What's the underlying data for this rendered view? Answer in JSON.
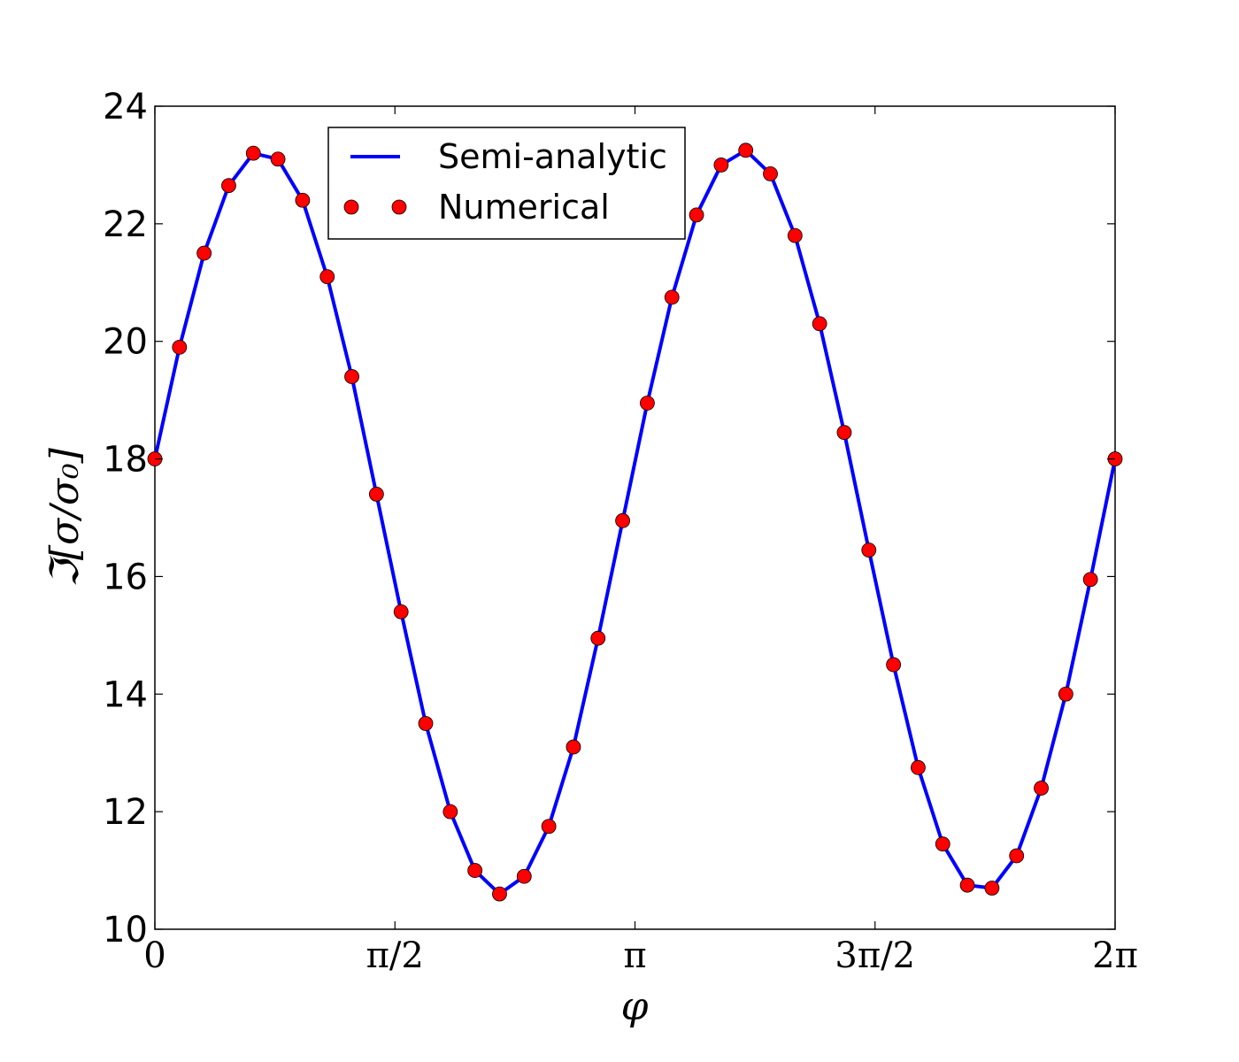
{
  "chart_data": {
    "type": "line",
    "title": "",
    "xlabel": "φ",
    "ylabel": "ℑ[σ/σ₀]",
    "xlim": [
      0,
      6.283185
    ],
    "ylim": [
      10,
      24
    ],
    "x_ticks": [
      {
        "value": 0,
        "label": "0"
      },
      {
        "value": 1.570796,
        "label": "π/2"
      },
      {
        "value": 3.141593,
        "label": "π"
      },
      {
        "value": 4.712389,
        "label": "3π/2"
      },
      {
        "value": 6.283185,
        "label": "2π"
      }
    ],
    "y_ticks": [
      10,
      12,
      14,
      16,
      18,
      20,
      22,
      24
    ],
    "legend_position": "top-left",
    "grid": false,
    "series": [
      {
        "name": "Semi-analytic",
        "style": "line",
        "color": "#0000ff",
        "x": [
          0,
          0.1611,
          0.3222,
          0.4833,
          0.6444,
          0.8055,
          0.9666,
          1.1277,
          1.2888,
          1.4499,
          1.611,
          1.7721,
          1.9332,
          2.0943,
          2.2554,
          2.4166,
          2.5777,
          2.7388,
          2.8999,
          3.061,
          3.2221,
          3.3832,
          3.5443,
          3.7054,
          3.8665,
          4.0276,
          4.1887,
          4.3498,
          4.5109,
          4.672,
          4.8332,
          4.9943,
          5.1554,
          5.3165,
          5.4776,
          5.6387,
          5.7998,
          5.9609,
          6.122,
          6.2832
        ],
        "y": [
          18.0,
          19.9,
          21.5,
          22.65,
          23.2,
          23.1,
          22.4,
          21.1,
          19.4,
          17.4,
          15.4,
          13.5,
          12.0,
          11.0,
          10.6,
          10.9,
          11.75,
          13.1,
          14.95,
          16.95,
          18.95,
          20.75,
          22.15,
          23.0,
          23.25,
          22.85,
          21.8,
          20.3,
          18.45,
          16.45,
          14.5,
          12.75,
          11.45,
          10.75,
          10.7,
          11.25,
          12.4,
          14.0,
          15.95,
          18.0
        ]
      },
      {
        "name": "Numerical",
        "style": "markers",
        "color": "#ff0000",
        "x": [
          0,
          0.1611,
          0.3222,
          0.4833,
          0.6444,
          0.8055,
          0.9666,
          1.1277,
          1.2888,
          1.4499,
          1.611,
          1.7721,
          1.9332,
          2.0943,
          2.2554,
          2.4166,
          2.5777,
          2.7388,
          2.8999,
          3.061,
          3.2221,
          3.3832,
          3.5443,
          3.7054,
          3.8665,
          4.0276,
          4.1887,
          4.3498,
          4.5109,
          4.672,
          4.8332,
          4.9943,
          5.1554,
          5.3165,
          5.4776,
          5.6387,
          5.7998,
          5.9609,
          6.122,
          6.2832
        ],
        "y": [
          18.0,
          19.9,
          21.5,
          22.65,
          23.2,
          23.1,
          22.4,
          21.1,
          19.4,
          17.4,
          15.4,
          13.5,
          12.0,
          11.0,
          10.6,
          10.9,
          11.75,
          13.1,
          14.95,
          16.95,
          18.95,
          20.75,
          22.15,
          23.0,
          23.25,
          22.85,
          21.8,
          20.3,
          18.45,
          16.45,
          14.5,
          12.75,
          11.45,
          10.75,
          10.7,
          11.25,
          12.4,
          14.0,
          15.95,
          18.0
        ]
      }
    ]
  }
}
